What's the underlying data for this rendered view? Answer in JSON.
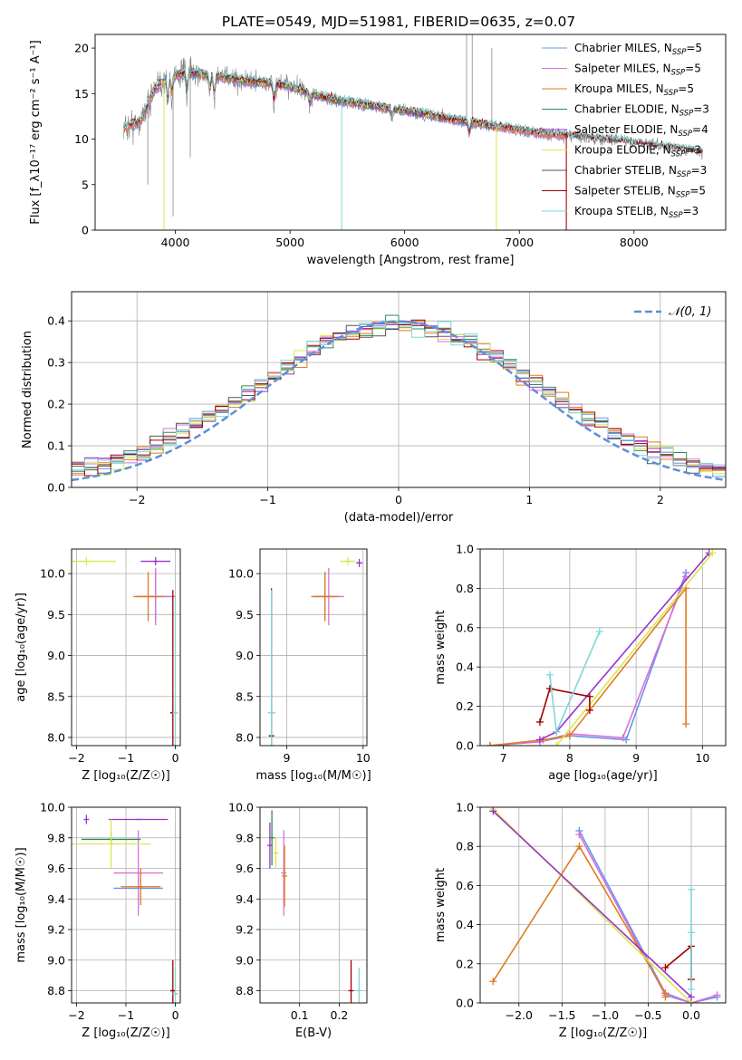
{
  "figure": {
    "title": "PLATE=0549, MJD=51981, FIBERID=0635, z=0.07",
    "colors": {
      "chab_miles": "#6495ED",
      "salp_miles": "#DA70D6",
      "krou_miles": "#E07B20",
      "chab_elodie": "#2E8B57",
      "salp_elodie": "#9932CC",
      "krou_elodie": "#D8E84C",
      "chab_stelib": "#555555",
      "salp_stelib": "#A00000",
      "krou_stelib": "#7FD7D7",
      "gauss": "#5B8FD9"
    }
  },
  "chart_data": [
    {
      "id": "spectrum",
      "type": "line",
      "xlabel": "wavelength [Angstrom, rest frame]",
      "ylabel": "Flux [f_λ10⁻¹⁷ erg cm⁻² s⁻¹ A⁻¹]",
      "xlim": [
        3300,
        8800
      ],
      "ylim": [
        0,
        21.5
      ],
      "xticks": [
        4000,
        5000,
        6000,
        7000,
        8000
      ],
      "yticks": [
        0,
        5,
        10,
        15,
        20
      ],
      "legend_position": "top-right",
      "legend": [
        {
          "sub_pre": "Chabrier MILES, N",
          "sub": "SSP",
          "sub_post": "=5",
          "color_key": "chab_miles"
        },
        {
          "sub_pre": "Salpeter MILES, N",
          "sub": "SSP",
          "sub_post": "=5",
          "color_key": "salp_miles"
        },
        {
          "sub_pre": "Kroupa MILES, N",
          "sub": "SSP",
          "sub_post": "=5",
          "color_key": "krou_miles"
        },
        {
          "sub_pre": "Chabrier ELODIE, N",
          "sub": "SSP",
          "sub_post": "=3",
          "color_key": "chab_elodie"
        },
        {
          "sub_pre": "Salpeter ELODIE, N",
          "sub": "SSP",
          "sub_post": "=4",
          "color_key": "salp_elodie"
        },
        {
          "sub_pre": "Kroupa ELODIE, N",
          "sub": "SSP",
          "sub_post": "=3",
          "color_key": "krou_elodie"
        },
        {
          "sub_pre": "Chabrier STELIB, N",
          "sub": "SSP",
          "sub_post": "=3",
          "color_key": "chab_stelib"
        },
        {
          "sub_pre": "Salpeter STELIB, N",
          "sub": "SSP",
          "sub_post": "=5",
          "color_key": "salp_stelib"
        },
        {
          "sub_pre": "Kroupa STELIB, N",
          "sub": "SSP",
          "sub_post": "=3",
          "color_key": "krou_stelib"
        }
      ],
      "continuum": {
        "x": [
          3550,
          3700,
          3800,
          3900,
          4000,
          4100,
          4200,
          4300,
          4400,
          4500,
          4700,
          4900,
          5000,
          5200,
          5400,
          5600,
          5800,
          6000,
          6200,
          6400,
          6600,
          6800,
          7000,
          7200,
          7400,
          7600,
          7800,
          8000,
          8200,
          8400,
          8600
        ],
        "y": [
          11.2,
          12.0,
          15.0,
          16.5,
          17.0,
          17.3,
          17.2,
          17.0,
          16.8,
          16.6,
          16.3,
          16.0,
          15.8,
          14.9,
          14.3,
          13.9,
          13.5,
          13.1,
          12.7,
          12.2,
          11.8,
          11.4,
          11.0,
          10.6,
          10.4,
          10.1,
          9.9,
          9.6,
          9.2,
          8.9,
          8.5
        ]
      }
    },
    {
      "id": "residuals",
      "type": "histogram",
      "xlabel": "(data-model)/error",
      "ylabel": "Normed distribution",
      "xlim": [
        -2.5,
        2.5
      ],
      "ylim": [
        0,
        0.47
      ],
      "xticks": [
        -2,
        -1,
        0,
        1,
        2
      ],
      "yticks": [
        0.0,
        0.1,
        0.2,
        0.3,
        0.4
      ],
      "grid": true,
      "legend_position": "top-right",
      "legend_label": "𝒩(0, 1)",
      "bin_start": -2.5,
      "bin_width": 0.1
    },
    {
      "id": "age_vs_Z",
      "type": "scatter",
      "xlabel": "Z [log₁₀(Z/Z☉)]",
      "ylabel": "age  [log₁₀(age/yr)]",
      "xlim": [
        -2.1,
        0.1
      ],
      "ylim": [
        7.9,
        10.3
      ],
      "xticks": [
        -2,
        -1,
        0
      ],
      "yticks": [
        8.0,
        8.5,
        9.0,
        9.5,
        10.0
      ],
      "grid": true,
      "points": [
        {
          "x": -0.4,
          "y": 9.72,
          "xerr": 0.35,
          "yerr": 0.3,
          "c": "chab_miles"
        },
        {
          "x": -0.4,
          "y": 9.72,
          "xerr": 0.4,
          "yerr": 0.35,
          "c": "salp_miles"
        },
        {
          "x": -0.55,
          "y": 9.72,
          "xerr": 0.3,
          "yerr": 0.3,
          "c": "krou_miles"
        },
        {
          "x": -1.8,
          "y": 10.15,
          "xerr": 0.6,
          "yerr": 0.05,
          "c": "krou_elodie"
        },
        {
          "x": -0.4,
          "y": 10.15,
          "xerr": 0.3,
          "yerr": 0.05,
          "c": "salp_elodie"
        },
        {
          "x": -0.05,
          "y": 8.3,
          "xerr": 0.05,
          "yerr": 1.5,
          "c": "salp_stelib"
        },
        {
          "x": 0.0,
          "y": 8.3,
          "xerr": 0.05,
          "yerr": 1.4,
          "c": "krou_stelib"
        }
      ]
    },
    {
      "id": "age_vs_mass",
      "type": "scatter",
      "xlabel": "mass [log₁₀(M/M☉)]",
      "ylabel": "",
      "xlim": [
        8.65,
        10.05
      ],
      "ylim": [
        7.9,
        10.3
      ],
      "xticks": [
        9,
        10
      ],
      "yticks": [
        8.0,
        8.5,
        9.0,
        9.5,
        10.0
      ],
      "grid": true,
      "points": [
        {
          "x": 9.5,
          "y": 9.72,
          "xerr": 0.15,
          "yerr": 0.3,
          "c": "chab_miles"
        },
        {
          "x": 9.55,
          "y": 9.72,
          "xerr": 0.2,
          "yerr": 0.35,
          "c": "salp_miles"
        },
        {
          "x": 9.5,
          "y": 9.72,
          "xerr": 0.18,
          "yerr": 0.3,
          "c": "krou_miles"
        },
        {
          "x": 9.8,
          "y": 10.15,
          "xerr": 0.1,
          "yerr": 0.05,
          "c": "krou_elodie"
        },
        {
          "x": 9.95,
          "y": 10.13,
          "xerr": 0.04,
          "yerr": 0.05,
          "c": "salp_elodie"
        },
        {
          "x": 8.8,
          "y": 8.02,
          "xerr": 0.03,
          "yerr": 1.8,
          "c": "salp_stelib"
        },
        {
          "x": 8.8,
          "y": 8.3,
          "xerr": 0.05,
          "yerr": 1.5,
          "c": "krou_stelib"
        }
      ]
    },
    {
      "id": "mass_weight_vs_age",
      "type": "line",
      "xlabel": "age  [log₁₀(age/yr)]",
      "ylabel": "mass weight",
      "xlim": [
        6.65,
        10.35
      ],
      "ylim": [
        0,
        1.0
      ],
      "xticks": [
        7,
        8,
        9,
        10
      ],
      "yticks": [
        0.0,
        0.2,
        0.4,
        0.6,
        0.8,
        1.0
      ],
      "grid": true,
      "series": [
        {
          "c": "chab_miles",
          "x": [
            6.8,
            7.55,
            8.0,
            8.85,
            9.75
          ],
          "y": [
            0.0,
            0.02,
            0.05,
            0.03,
            0.88
          ]
        },
        {
          "c": "salp_miles",
          "x": [
            6.8,
            7.55,
            8.0,
            8.8,
            9.75
          ],
          "y": [
            0.0,
            0.02,
            0.06,
            0.04,
            0.86
          ]
        },
        {
          "c": "krou_miles",
          "x": [
            6.8,
            7.6,
            8.0,
            9.75,
            9.75
          ],
          "y": [
            0.0,
            0.03,
            0.05,
            0.8,
            0.11
          ]
        },
        {
          "c": "salp_elodie",
          "x": [
            7.55,
            7.8,
            10.1
          ],
          "y": [
            0.03,
            0.07,
            0.98
          ]
        },
        {
          "c": "krou_elodie",
          "x": [
            7.8,
            10.15
          ],
          "y": [
            0.0,
            0.98
          ]
        },
        {
          "c": "salp_stelib",
          "x": [
            7.55,
            7.7,
            8.3,
            8.3
          ],
          "y": [
            0.12,
            0.29,
            0.25,
            0.18
          ]
        },
        {
          "c": "krou_stelib",
          "x": [
            7.7,
            7.8,
            8.45
          ],
          "y": [
            0.36,
            0.07,
            0.58
          ]
        }
      ]
    },
    {
      "id": "mass_vs_Z",
      "type": "scatter",
      "xlabel": "Z [log₁₀(Z/Z☉)]",
      "ylabel": "mass [log₁₀(M/M☉)]",
      "xlim": [
        -2.1,
        0.1
      ],
      "ylim": [
        8.72,
        10.0
      ],
      "xticks": [
        -2,
        -1,
        0
      ],
      "yticks": [
        8.8,
        9.0,
        9.2,
        9.4,
        9.6,
        9.8,
        10.0
      ],
      "grid": true,
      "points": [
        {
          "x": -1.8,
          "y": 9.92,
          "xerr": 0.02,
          "yerr": 0.03,
          "c": "salp_elodie"
        },
        {
          "x": -0.75,
          "y": 9.92,
          "xerr": 0.6,
          "yerr": 0.0,
          "c": "salp_elodie"
        },
        {
          "x": -0.75,
          "y": 9.47,
          "xerr": 0.5,
          "yerr": 0.12,
          "c": "chab_miles"
        },
        {
          "x": -0.75,
          "y": 9.57,
          "xerr": 0.5,
          "yerr": 0.28,
          "c": "salp_miles"
        },
        {
          "x": -0.7,
          "y": 9.48,
          "xerr": 0.4,
          "yerr": 0.12,
          "c": "krou_miles"
        },
        {
          "x": -1.3,
          "y": 9.79,
          "xerr": 0.6,
          "yerr": 0.04,
          "c": "chab_elodie"
        },
        {
          "x": -1.3,
          "y": 9.76,
          "xerr": 0.8,
          "yerr": 0.16,
          "c": "krou_elodie"
        },
        {
          "x": -0.05,
          "y": 8.8,
          "xerr": 0.05,
          "yerr": 0.2,
          "c": "salp_stelib"
        },
        {
          "x": 0.0,
          "y": 8.78,
          "xerr": 0.05,
          "yerr": 0.17,
          "c": "krou_stelib"
        }
      ]
    },
    {
      "id": "mass_vs_ebv",
      "type": "scatter",
      "xlabel": "E(B-V)",
      "ylabel": "",
      "xlim": [
        0.0,
        0.27
      ],
      "ylim": [
        8.72,
        10.0
      ],
      "xticks": [
        0.1,
        0.2
      ],
      "yticks": [
        8.8,
        9.0,
        9.2,
        9.4,
        9.6,
        9.8,
        10.0
      ],
      "grid": true,
      "points": [
        {
          "x": 0.025,
          "y": 9.75,
          "xerr": 0.0,
          "yerr": 0.15,
          "c": "salp_elodie"
        },
        {
          "x": 0.03,
          "y": 9.8,
          "xerr": 0.0,
          "yerr": 0.18,
          "c": "chab_elodie"
        },
        {
          "x": 0.06,
          "y": 9.57,
          "xerr": 0.0,
          "yerr": 0.28,
          "c": "salp_miles"
        },
        {
          "x": 0.062,
          "y": 9.55,
          "xerr": 0.0,
          "yerr": 0.2,
          "c": "krou_miles"
        },
        {
          "x": 0.04,
          "y": 9.7,
          "xerr": 0.0,
          "yerr": 0.1,
          "c": "krou_elodie"
        },
        {
          "x": 0.23,
          "y": 8.8,
          "xerr": 0.0,
          "yerr": 0.2,
          "c": "salp_stelib"
        },
        {
          "x": 0.25,
          "y": 8.8,
          "xerr": 0.0,
          "yerr": 0.15,
          "c": "krou_stelib"
        }
      ]
    },
    {
      "id": "mass_weight_vs_Z",
      "type": "line",
      "xlabel": "Z [log₁₀(Z/Z☉)]",
      "ylabel": "mass weight",
      "xlim": [
        -2.45,
        0.4
      ],
      "ylim": [
        0,
        1.0
      ],
      "xticks": [
        -2.0,
        -1.5,
        -1.0,
        -0.5,
        0.0
      ],
      "yticks": [
        0.0,
        0.2,
        0.4,
        0.6,
        0.8,
        1.0
      ],
      "grid": true,
      "series": [
        {
          "c": "chab_miles",
          "x": [
            -1.3,
            -0.3,
            0.0,
            0.3
          ],
          "y": [
            0.88,
            0.05,
            0.0,
            0.03
          ]
        },
        {
          "c": "salp_miles",
          "x": [
            -1.3,
            -0.3,
            0.0,
            0.3
          ],
          "y": [
            0.86,
            0.04,
            0.0,
            0.04
          ]
        },
        {
          "c": "krou_miles",
          "x": [
            -2.3,
            -1.3,
            -0.3,
            -0.3
          ],
          "y": [
            0.11,
            0.8,
            0.05,
            0.03
          ]
        },
        {
          "c": "krou_elodie",
          "x": [
            -2.3,
            0.0
          ],
          "y": [
            0.99,
            0.0
          ]
        },
        {
          "c": "salp_elodie",
          "x": [
            -2.3,
            0.0
          ],
          "y": [
            0.98,
            0.03
          ]
        },
        {
          "c": "salp_stelib",
          "x": [
            -0.3,
            0.0,
            0.0
          ],
          "y": [
            0.18,
            0.29,
            0.12
          ]
        },
        {
          "c": "krou_stelib",
          "x": [
            0.0,
            0.0,
            0.0
          ],
          "y": [
            0.58,
            0.36,
            0.07
          ]
        }
      ]
    }
  ]
}
